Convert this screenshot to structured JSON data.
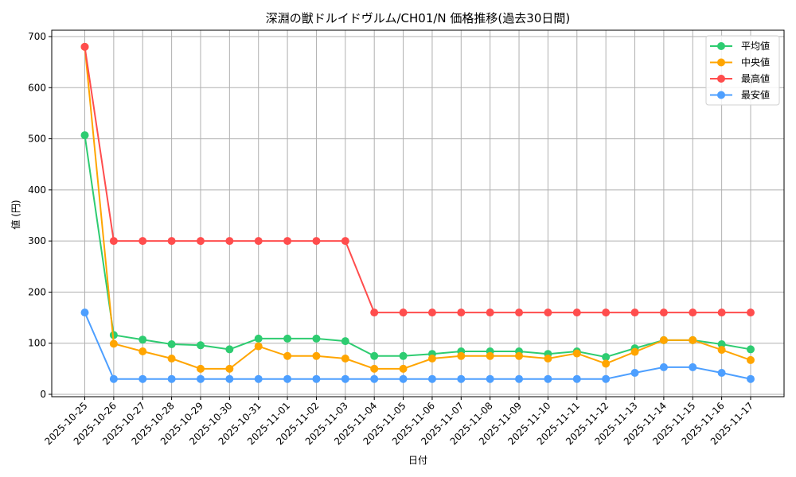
{
  "chart_data": {
    "type": "line",
    "title": "深淵の獣ドルイドヴルム/CH01/N 価格推移(過去30日間)",
    "xlabel": "日付",
    "ylabel": "値 (円)",
    "ylim": [
      0,
      700
    ],
    "yticks": [
      0,
      100,
      200,
      300,
      400,
      500,
      600,
      700
    ],
    "grid": true,
    "legend_position": "upper right",
    "categories": [
      "2025-10-25",
      "2025-10-26",
      "2025-10-27",
      "2025-10-28",
      "2025-10-29",
      "2025-10-30",
      "2025-10-31",
      "2025-11-01",
      "2025-11-02",
      "2025-11-03",
      "2025-11-04",
      "2025-11-05",
      "2025-11-06",
      "2025-11-07",
      "2025-11-08",
      "2025-11-09",
      "2025-11-10",
      "2025-11-11",
      "2025-11-12",
      "2025-11-13",
      "2025-11-14",
      "2025-11-15",
      "2025-11-16",
      "2025-11-17"
    ],
    "series": [
      {
        "name": "平均値",
        "color": "#2ecc71",
        "values": [
          507,
          116,
          107,
          98,
          96,
          88,
          109,
          109,
          109,
          104,
          75,
          75,
          79,
          84,
          84,
          84,
          79,
          84,
          73,
          90,
          106,
          106,
          98,
          88
        ]
      },
      {
        "name": "中央値",
        "color": "#ffa500",
        "values": [
          680,
          99,
          84,
          70,
          50,
          50,
          94,
          75,
          75,
          70,
          50,
          50,
          70,
          75,
          75,
          75,
          70,
          80,
          60,
          83,
          106,
          106,
          87,
          67
        ]
      },
      {
        "name": "最高値",
        "color": "#ff4d4d",
        "values": [
          680,
          300,
          300,
          300,
          300,
          300,
          300,
          300,
          300,
          300,
          160,
          160,
          160,
          160,
          160,
          160,
          160,
          160,
          160,
          160,
          160,
          160,
          160,
          160
        ]
      },
      {
        "name": "最安値",
        "color": "#4d9fff",
        "values": [
          160,
          30,
          30,
          30,
          30,
          30,
          30,
          30,
          30,
          30,
          30,
          30,
          30,
          30,
          30,
          30,
          30,
          30,
          30,
          42,
          53,
          53,
          42,
          30
        ]
      }
    ]
  }
}
